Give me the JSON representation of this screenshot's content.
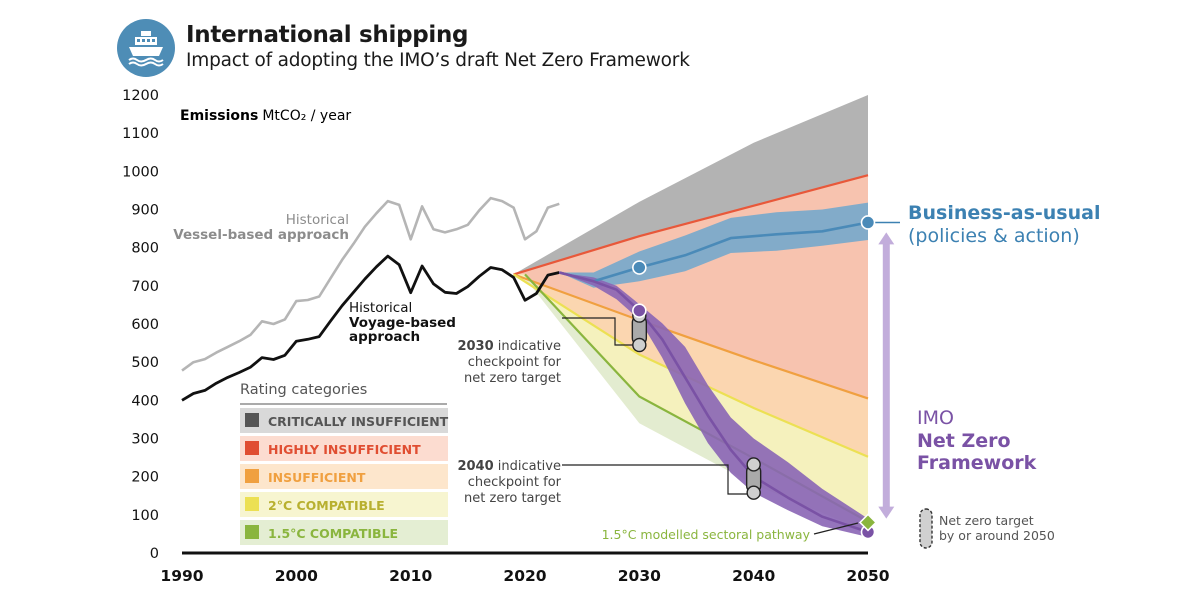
{
  "header": {
    "title": "International shipping",
    "subtitle": "Impact of adopting the IMO’s draft Net Zero Framework",
    "icon": "ship-icon",
    "icon_color": "#4e8db6"
  },
  "chart_data": {
    "type": "line",
    "ylabel_bold": "Emissions",
    "ylabel_unit": "MtCO₂ / year",
    "xlim": [
      1990,
      2050
    ],
    "ylim": [
      0,
      1200
    ],
    "x_ticks": [
      1990,
      2000,
      2010,
      2020,
      2030,
      2040,
      2050
    ],
    "y_ticks": [
      0,
      100,
      200,
      300,
      400,
      500,
      600,
      700,
      800,
      900,
      1000,
      1100,
      1200
    ],
    "grid": false,
    "rating_bands": [
      {
        "name": "CRITICALLY INSUFFICIENT",
        "color": "#b3b3b3",
        "text_color": "#555555",
        "bg": "#d9d9d9",
        "sw": "#555555",
        "lower": [
          [
            2019,
            730
          ],
          [
            2030,
            830
          ],
          [
            2040,
            910
          ],
          [
            2050,
            990
          ]
        ],
        "upper": [
          [
            2019,
            730
          ],
          [
            2030,
            920
          ],
          [
            2040,
            1075
          ],
          [
            2050,
            1200
          ]
        ]
      },
      {
        "name": "HIGHLY INSUFFICIENT",
        "color": "#f7c3af",
        "text_color": "#e04e32",
        "bg": "#fcdcd0",
        "sw": "#e04e32",
        "lower": [
          [
            2019,
            730
          ],
          [
            2030,
            610
          ],
          [
            2040,
            505
          ],
          [
            2050,
            405
          ]
        ],
        "upper": [
          [
            2019,
            730
          ],
          [
            2030,
            830
          ],
          [
            2040,
            910
          ],
          [
            2050,
            990
          ]
        ]
      },
      {
        "name": "INSUFFICIENT",
        "color": "#fbd6b0",
        "text_color": "#f0a040",
        "bg": "#fde6cc",
        "sw": "#f0a040",
        "lower": [
          [
            2019,
            730
          ],
          [
            2030,
            520
          ],
          [
            2040,
            380
          ],
          [
            2050,
            252
          ]
        ],
        "upper": [
          [
            2019,
            730
          ],
          [
            2030,
            610
          ],
          [
            2040,
            505
          ],
          [
            2050,
            405
          ]
        ]
      },
      {
        "name": "2°C COMPATIBLE",
        "color": "#f5f1bd",
        "text_color": "#b8b030",
        "bg": "#f7f5d0",
        "sw": "#ece053",
        "lower": [
          [
            2020,
            730
          ],
          [
            2030,
            410
          ],
          [
            2040,
            248
          ],
          [
            2050,
            82
          ]
        ],
        "upper": [
          [
            2019,
            730
          ],
          [
            2030,
            520
          ],
          [
            2040,
            380
          ],
          [
            2050,
            252
          ]
        ]
      },
      {
        "name": "1.5°C COMPATIBLE",
        "color": "#e3ecd0",
        "text_color": "#8ab53e",
        "bg": "#e4eed3",
        "sw": "#8ab53e",
        "lower": [
          [
            2020,
            720
          ],
          [
            2030,
            340
          ],
          [
            2040,
            180
          ],
          [
            2050,
            55
          ]
        ],
        "upper": [
          [
            2020,
            730
          ],
          [
            2030,
            410
          ],
          [
            2040,
            248
          ],
          [
            2050,
            82
          ]
        ]
      }
    ],
    "band_edges": [
      {
        "color": "#e8583a",
        "points": [
          [
            2019,
            730
          ],
          [
            2030,
            830
          ],
          [
            2040,
            910
          ],
          [
            2050,
            990
          ]
        ]
      },
      {
        "color": "#f0a040",
        "points": [
          [
            2019,
            730
          ],
          [
            2030,
            610
          ],
          [
            2040,
            505
          ],
          [
            2050,
            405
          ]
        ]
      },
      {
        "color": "#ece053",
        "points": [
          [
            2019,
            730
          ],
          [
            2030,
            520
          ],
          [
            2040,
            380
          ],
          [
            2050,
            252
          ]
        ]
      },
      {
        "color": "#8ab53e",
        "points": [
          [
            2020,
            730
          ],
          [
            2030,
            410
          ],
          [
            2040,
            248
          ],
          [
            2050,
            82
          ]
        ]
      }
    ],
    "series": [
      {
        "name": "Historical Vessel-based approach",
        "color": "#b5b5b5",
        "x": [
          1990,
          1991,
          1992,
          1993,
          1994,
          1995,
          1996,
          1997,
          1998,
          1999,
          2000,
          2001,
          2002,
          2003,
          2004,
          2005,
          2006,
          2007,
          2008,
          2009,
          2010,
          2011,
          2012,
          2013,
          2014,
          2015,
          2016,
          2017,
          2018,
          2019,
          2020,
          2021,
          2022,
          2023
        ],
        "y": [
          478,
          500,
          508,
          525,
          540,
          555,
          572,
          607,
          600,
          612,
          660,
          663,
          672,
          720,
          768,
          810,
          855,
          890,
          922,
          912,
          822,
          908,
          848,
          840,
          848,
          860,
          898,
          930,
          922,
          905,
          822,
          843,
          905,
          915
        ]
      },
      {
        "name": "Historical Voyage-based approach",
        "color": "#111111",
        "x": [
          1990,
          1991,
          1992,
          1993,
          1994,
          1995,
          1996,
          1997,
          1998,
          1999,
          2000,
          2001,
          2002,
          2003,
          2004,
          2005,
          2006,
          2007,
          2008,
          2009,
          2010,
          2011,
          2012,
          2013,
          2014,
          2015,
          2016,
          2017,
          2018,
          2019,
          2020,
          2021,
          2022,
          2023
        ],
        "y": [
          400,
          418,
          426,
          445,
          460,
          473,
          487,
          512,
          507,
          518,
          555,
          560,
          567,
          608,
          648,
          683,
          718,
          750,
          778,
          755,
          682,
          752,
          705,
          683,
          680,
          698,
          725,
          748,
          742,
          722,
          662,
          680,
          728,
          735
        ]
      },
      {
        "name": "Business-as-usual",
        "color": "#4a8ab8",
        "band_color": "#74a9cc",
        "x": [
          2023,
          2026,
          2030,
          2034,
          2038,
          2042,
          2046,
          2050
        ],
        "y": [
          735,
          712,
          748,
          780,
          825,
          835,
          843,
          866
        ],
        "upper": [
          735,
          735,
          790,
          832,
          878,
          893,
          900,
          918
        ],
        "lower": [
          735,
          695,
          712,
          738,
          786,
          792,
          805,
          820
        ]
      },
      {
        "name": "IMO Net Zero Framework",
        "color": "#7a52a5",
        "band_color": "#8a65b5",
        "x": [
          2023,
          2026,
          2028,
          2030,
          2032,
          2034,
          2036,
          2038,
          2040,
          2043,
          2046,
          2050
        ],
        "y": [
          735,
          712,
          690,
          635,
          560,
          460,
          360,
          270,
          200,
          145,
          95,
          55
        ],
        "upper": [
          735,
          722,
          700,
          652,
          602,
          540,
          440,
          355,
          300,
          238,
          168,
          90
        ],
        "lower": [
          735,
          700,
          665,
          612,
          512,
          392,
          288,
          210,
          158,
          112,
          70,
          42
        ]
      }
    ],
    "markers": [
      {
        "x": 2030,
        "y": 748,
        "color": "#4a8ab8"
      },
      {
        "x": 2050,
        "y": 866,
        "color": "#4a8ab8"
      },
      {
        "x": 2030,
        "y": 635,
        "color": "#7a52a5"
      },
      {
        "x": 2050,
        "y": 55,
        "color": "#7a52a5"
      }
    ],
    "checkpoints": [
      {
        "x": 2030,
        "low": 545,
        "high": 622
      },
      {
        "x": 2040,
        "low": 158,
        "high": 232
      }
    ],
    "pathway_marker": {
      "x": 2050,
      "y": 80,
      "color": "#8ab53e"
    },
    "impact_arrow": {
      "x": 2051.6,
      "from": 840,
      "to": 90,
      "color": "#c2addb"
    },
    "labels": {
      "vessel_line1": "Historical",
      "vessel_line2": "Vessel-based approach",
      "voyage_line1": "Historical",
      "voyage_line2": "Voyage-based",
      "voyage_line3": "approach",
      "bau_line1": "Business-as-usual",
      "bau_line2": "(policies & action)",
      "imo_line1": "IMO",
      "imo_line2": "Net Zero",
      "imo_line3": "Framework",
      "cp2030_bold": "2030",
      "cp2030_rest": " indicative",
      "cp2030_line2": "checkpoint for",
      "cp2030_line3": "net zero target",
      "cp2040_bold": "2040",
      "cp2040_rest": " indicative",
      "cp2040_line2": "checkpoint for",
      "cp2040_line3": "net zero target",
      "pathway": "1.5°C modelled sectoral pathway",
      "nz_line1": "Net zero target",
      "nz_line2": "by or around 2050",
      "legend_title": "Rating categories"
    }
  }
}
